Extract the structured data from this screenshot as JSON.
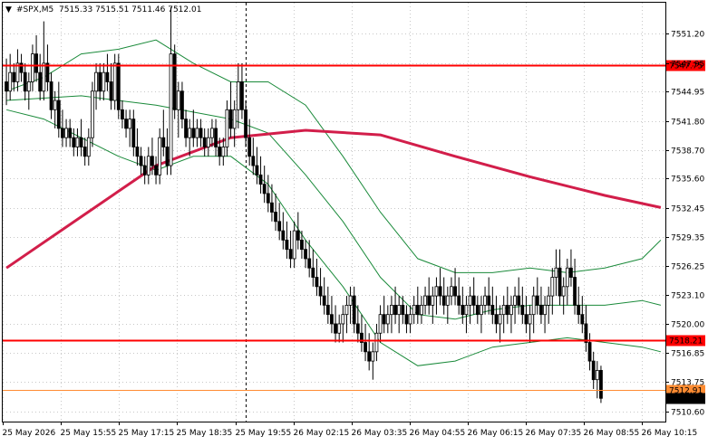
{
  "header": {
    "arrow": "▼",
    "symbol": "#SPX,M5",
    "ohlc": "7515.33 7515.51 7511.46 7512.01"
  },
  "chart_data": {
    "type": "candlestick",
    "symbol": "#SPX",
    "timeframe": "M5",
    "ylim": [
      7509.5,
      7554.5
    ],
    "y_ticks": [
      "7551.20",
      "7547.95",
      "7544.95",
      "7541.80",
      "7538.70",
      "7535.60",
      "7532.45",
      "7529.35",
      "7526.25",
      "7523.10",
      "7520.00",
      "7516.85",
      "7513.75",
      "7510.60"
    ],
    "x_labels": [
      "25 May 2026",
      "25 May 15:55",
      "25 May 17:15",
      "25 May 18:35",
      "25 May 19:55",
      "26 May 02:15",
      "26 May 03:35",
      "26 May 04:55",
      "26 May 06:15",
      "26 May 07:35",
      "26 May 08:55",
      "26 May 10:15"
    ],
    "n_bars": 176,
    "cursor_bar": 64,
    "levels": [
      {
        "name": "resistance",
        "value": 7547.75,
        "label": "7547.75",
        "color": "#ff0000"
      },
      {
        "name": "support",
        "value": 7518.21,
        "label": "7518.21",
        "color": "#ff0000"
      },
      {
        "name": "bid",
        "value": 7512.91,
        "label": "7512.91",
        "color": "#ff8c32"
      },
      {
        "name": "last",
        "value": 7512.01,
        "label": "7512.01",
        "color": "#000000"
      }
    ],
    "candles": [
      [
        7546,
        7548.5,
        7543.5,
        7545
      ],
      [
        7545,
        7549,
        7544,
        7547
      ],
      [
        7547,
        7548,
        7545,
        7546
      ],
      [
        7546,
        7549.5,
        7545,
        7548
      ],
      [
        7548,
        7549,
        7546,
        7547
      ],
      [
        7547,
        7548,
        7544,
        7545
      ],
      [
        7545,
        7547,
        7543,
        7546
      ],
      [
        7546,
        7550,
        7545,
        7549
      ],
      [
        7549,
        7551,
        7546,
        7547
      ],
      [
        7547,
        7549,
        7544,
        7545
      ],
      [
        7545,
        7552.5,
        7544,
        7548
      ],
      [
        7548,
        7550,
        7545,
        7546
      ],
      [
        7546,
        7547,
        7542,
        7543
      ],
      [
        7543,
        7545,
        7541,
        7544
      ],
      [
        7544,
        7546,
        7540,
        7541
      ],
      [
        7541,
        7543,
        7539,
        7540
      ],
      [
        7540,
        7542,
        7539,
        7541
      ],
      [
        7541,
        7542,
        7539,
        7540
      ],
      [
        7540,
        7541,
        7538,
        7539
      ],
      [
        7539,
        7541,
        7538,
        7540
      ],
      [
        7540,
        7542,
        7538,
        7539
      ],
      [
        7539,
        7540,
        7537,
        7538
      ],
      [
        7538,
        7541,
        7537,
        7540
      ],
      [
        7540,
        7546,
        7539,
        7545
      ],
      [
        7545,
        7548,
        7543,
        7547
      ],
      [
        7547,
        7548,
        7544,
        7545
      ],
      [
        7545,
        7548,
        7544,
        7547
      ],
      [
        7547,
        7549,
        7545,
        7546
      ],
      [
        7546,
        7548,
        7543,
        7544
      ],
      [
        7544,
        7549,
        7543,
        7548
      ],
      [
        7548,
        7549,
        7542,
        7543
      ],
      [
        7543,
        7544,
        7541,
        7542
      ],
      [
        7542,
        7543,
        7540,
        7541
      ],
      [
        7541,
        7543,
        7539,
        7542
      ],
      [
        7542,
        7543,
        7538,
        7539
      ],
      [
        7539,
        7541,
        7537,
        7538
      ],
      [
        7538,
        7539,
        7536,
        7537
      ],
      [
        7537,
        7538,
        7535,
        7536
      ],
      [
        7536,
        7539,
        7535,
        7538
      ],
      [
        7538,
        7540,
        7536,
        7537
      ],
      [
        7537,
        7538,
        7535,
        7536
      ],
      [
        7536,
        7541,
        7535,
        7540
      ],
      [
        7540,
        7543,
        7538,
        7539
      ],
      [
        7539,
        7541,
        7536,
        7537
      ],
      [
        7537,
        7554,
        7536,
        7549
      ],
      [
        7549,
        7550,
        7542,
        7543
      ],
      [
        7543,
        7546,
        7540,
        7545
      ],
      [
        7545,
        7546,
        7541,
        7542
      ],
      [
        7542,
        7543,
        7539,
        7540
      ],
      [
        7540,
        7542,
        7538,
        7541
      ],
      [
        7541,
        7543,
        7539,
        7540
      ],
      [
        7540,
        7542,
        7539,
        7541
      ],
      [
        7541,
        7542,
        7539,
        7540
      ],
      [
        7540,
        7541,
        7538,
        7539
      ],
      [
        7539,
        7541,
        7538,
        7540
      ],
      [
        7540,
        7542,
        7539,
        7541
      ],
      [
        7541,
        7542,
        7538,
        7539
      ],
      [
        7539,
        7540,
        7537,
        7538
      ],
      [
        7538,
        7540,
        7537,
        7539
      ],
      [
        7539,
        7544,
        7538,
        7543
      ],
      [
        7543,
        7546,
        7540,
        7541
      ],
      [
        7541,
        7544,
        7539,
        7543
      ],
      [
        7543,
        7548,
        7541,
        7546
      ],
      [
        7546,
        7548,
        7542,
        7543
      ],
      [
        7543,
        7544,
        7539,
        7540
      ],
      [
        7540,
        7542,
        7537,
        7538
      ],
      [
        7538,
        7540,
        7536,
        7537
      ],
      [
        7537,
        7539,
        7535,
        7536
      ],
      [
        7536,
        7538,
        7534,
        7535
      ],
      [
        7535,
        7537,
        7533,
        7534
      ],
      [
        7534,
        7536,
        7532,
        7533
      ],
      [
        7533,
        7535,
        7531,
        7532
      ],
      [
        7532,
        7534,
        7530,
        7531
      ],
      [
        7531,
        7533,
        7529,
        7530
      ],
      [
        7530,
        7532,
        7528,
        7529
      ],
      [
        7529,
        7531,
        7527,
        7528
      ],
      [
        7528,
        7530,
        7526,
        7527
      ],
      [
        7527,
        7531,
        7526,
        7530
      ],
      [
        7530,
        7532,
        7528,
        7529
      ],
      [
        7529,
        7530,
        7527,
        7528
      ],
      [
        7528,
        7529,
        7526,
        7527
      ],
      [
        7527,
        7529,
        7525,
        7526
      ],
      [
        7526,
        7528,
        7524,
        7525
      ],
      [
        7525,
        7527,
        7523,
        7524
      ],
      [
        7524,
        7526,
        7522,
        7523
      ],
      [
        7523,
        7525,
        7521,
        7522
      ],
      [
        7522,
        7524,
        7520,
        7521
      ],
      [
        7521,
        7523,
        7519,
        7520
      ],
      [
        7520,
        7522,
        7518,
        7519
      ],
      [
        7519,
        7521,
        7518,
        7520
      ],
      [
        7520,
        7522,
        7518,
        7521
      ],
      [
        7521,
        7523,
        7519,
        7522
      ],
      [
        7522,
        7524,
        7520,
        7523
      ],
      [
        7523,
        7524,
        7519,
        7520
      ],
      [
        7520,
        7522,
        7518,
        7519
      ],
      [
        7519,
        7521,
        7517,
        7518
      ],
      [
        7518,
        7520,
        7516,
        7517
      ],
      [
        7517,
        7519,
        7515,
        7516
      ],
      [
        7516,
        7518,
        7514,
        7517
      ],
      [
        7517,
        7520,
        7516,
        7519
      ],
      [
        7519,
        7522,
        7518,
        7521
      ],
      [
        7521,
        7523,
        7519,
        7520
      ],
      [
        7520,
        7522,
        7519,
        7521
      ],
      [
        7521,
        7523,
        7519,
        7522
      ],
      [
        7522,
        7524,
        7520,
        7521
      ],
      [
        7521,
        7523,
        7519,
        7522
      ],
      [
        7522,
        7523,
        7520,
        7521
      ],
      [
        7521,
        7522,
        7519,
        7520
      ],
      [
        7520,
        7522,
        7519,
        7521
      ],
      [
        7521,
        7523,
        7520,
        7522
      ],
      [
        7522,
        7524,
        7520,
        7521
      ],
      [
        7521,
        7523,
        7520,
        7522
      ],
      [
        7522,
        7524,
        7521,
        7523
      ],
      [
        7523,
        7525,
        7521,
        7522
      ],
      [
        7522,
        7524,
        7520,
        7523
      ],
      [
        7523,
        7525,
        7521,
        7524
      ],
      [
        7524,
        7526,
        7522,
        7523
      ],
      [
        7523,
        7525,
        7521,
        7522
      ],
      [
        7522,
        7524,
        7520,
        7523
      ],
      [
        7523,
        7525,
        7522,
        7524
      ],
      [
        7524,
        7526,
        7522,
        7523
      ],
      [
        7523,
        7525,
        7521,
        7522
      ],
      [
        7522,
        7524,
        7520,
        7521
      ],
      [
        7521,
        7523,
        7519,
        7522
      ],
      [
        7522,
        7524,
        7520,
        7523
      ],
      [
        7523,
        7525,
        7521,
        7522
      ],
      [
        7522,
        7523,
        7520,
        7521
      ],
      [
        7521,
        7523,
        7519,
        7522
      ],
      [
        7522,
        7524,
        7521,
        7523
      ],
      [
        7523,
        7525,
        7521,
        7522
      ],
      [
        7522,
        7524,
        7520,
        7521
      ],
      [
        7521,
        7523,
        7519,
        7520
      ],
      [
        7520,
        7522,
        7518,
        7521
      ],
      [
        7521,
        7523,
        7519,
        7522
      ],
      [
        7522,
        7524,
        7520,
        7521
      ],
      [
        7521,
        7523,
        7519,
        7522
      ],
      [
        7522,
        7524,
        7520,
        7523
      ],
      [
        7523,
        7525,
        7521,
        7522
      ],
      [
        7522,
        7524,
        7520,
        7521
      ],
      [
        7521,
        7523,
        7519,
        7520
      ],
      [
        7520,
        7522,
        7518,
        7521
      ],
      [
        7521,
        7524,
        7519,
        7523
      ],
      [
        7523,
        7525,
        7521,
        7522
      ],
      [
        7522,
        7524,
        7520,
        7521
      ],
      [
        7521,
        7523,
        7519,
        7522
      ],
      [
        7522,
        7524,
        7520,
        7523
      ],
      [
        7523,
        7526,
        7521,
        7525
      ],
      [
        7525,
        7528,
        7523,
        7526
      ],
      [
        7526,
        7528,
        7522,
        7523
      ],
      [
        7523,
        7525,
        7521,
        7524
      ],
      [
        7524,
        7527,
        7522,
        7526
      ],
      [
        7526,
        7528,
        7524,
        7525
      ],
      [
        7525,
        7527,
        7521,
        7522
      ],
      [
        7522,
        7524,
        7520,
        7521
      ],
      [
        7521,
        7523,
        7519,
        7520
      ],
      [
        7520,
        7522,
        7517,
        7518
      ],
      [
        7518,
        7519,
        7515,
        7516
      ],
      [
        7516,
        7517,
        7513,
        7514
      ],
      [
        7514,
        7516,
        7512,
        7515
      ],
      [
        7515,
        7515.5,
        7511.5,
        7512
      ]
    ],
    "ma_points": [
      [
        0,
        7526
      ],
      [
        20,
        7531.5
      ],
      [
        40,
        7537
      ],
      [
        60,
        7540
      ],
      [
        80,
        7540.8
      ],
      [
        100,
        7540.3
      ],
      [
        120,
        7538
      ],
      [
        140,
        7535.8
      ],
      [
        160,
        7533.8
      ],
      [
        175,
        7532.5
      ]
    ],
    "upper_band": [
      [
        0,
        7545
      ],
      [
        10,
        7546.5
      ],
      [
        20,
        7549
      ],
      [
        30,
        7549.5
      ],
      [
        40,
        7550.5
      ],
      [
        50,
        7548
      ],
      [
        60,
        7546
      ],
      [
        70,
        7546
      ],
      [
        80,
        7543.5
      ],
      [
        90,
        7538
      ],
      [
        100,
        7532
      ],
      [
        110,
        7527
      ],
      [
        120,
        7525.5
      ],
      [
        130,
        7525.5
      ],
      [
        140,
        7526
      ],
      [
        150,
        7525.5
      ],
      [
        160,
        7526
      ],
      [
        170,
        7527
      ],
      [
        175,
        7529
      ]
    ],
    "lower_band": [
      [
        0,
        7543
      ],
      [
        10,
        7542
      ],
      [
        20,
        7540
      ],
      [
        30,
        7538
      ],
      [
        40,
        7536.5
      ],
      [
        50,
        7538
      ],
      [
        60,
        7538
      ],
      [
        70,
        7535
      ],
      [
        80,
        7529
      ],
      [
        90,
        7524
      ],
      [
        100,
        7518
      ],
      [
        110,
        7515.5
      ],
      [
        120,
        7516
      ],
      [
        130,
        7517.5
      ],
      [
        140,
        7518
      ],
      [
        150,
        7518.5
      ],
      [
        160,
        7518
      ],
      [
        170,
        7517.5
      ],
      [
        175,
        7517
      ]
    ],
    "middle_band": [
      [
        0,
        7544
      ],
      [
        20,
        7544.5
      ],
      [
        40,
        7543.5
      ],
      [
        60,
        7542
      ],
      [
        70,
        7540.5
      ],
      [
        80,
        7536
      ],
      [
        90,
        7531
      ],
      [
        100,
        7525
      ],
      [
        110,
        7521
      ],
      [
        120,
        7520.5
      ],
      [
        130,
        7521.5
      ],
      [
        140,
        7522
      ],
      [
        150,
        7522
      ],
      [
        160,
        7522
      ],
      [
        170,
        7522.5
      ],
      [
        175,
        7522
      ]
    ]
  }
}
